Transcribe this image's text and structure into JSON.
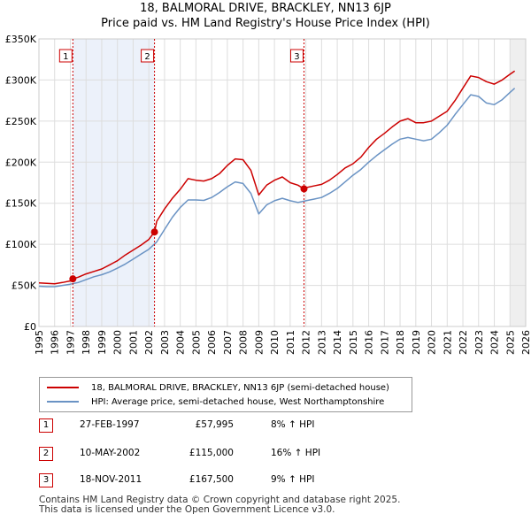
{
  "title_line1": "18, BALMORAL DRIVE, BRACKLEY, NN13 6JP",
  "title_line2": "Price paid vs. HM Land Registry's House Price Index (HPI)",
  "legend": {
    "property_label": "18, BALMORAL DRIVE, BRACKLEY, NN13 6JP (semi-detached house)",
    "hpi_label": "HPI: Average price, semi-detached house, West Northamptonshire"
  },
  "colors": {
    "property": "#cc0000",
    "hpi": "#6a93c4",
    "shade": "#dde6f5",
    "marker_line": "#cc0000"
  },
  "transactions": [
    {
      "num": "1",
      "date": "27-FEB-1997",
      "price": "£57,995",
      "hpi": "8% ↑ HPI"
    },
    {
      "num": "2",
      "date": "10-MAY-2002",
      "price": "£115,000",
      "hpi": "16% ↑ HPI"
    },
    {
      "num": "3",
      "date": "18-NOV-2011",
      "price": "£167,500",
      "hpi": "9% ↑ HPI"
    }
  ],
  "footer_line1": "Contains HM Land Registry data © Crown copyright and database right 2025.",
  "footer_line2": "This data is licensed under the Open Government Licence v3.0.",
  "chart_data": {
    "type": "line",
    "xlim": [
      1995,
      2026
    ],
    "ylim": [
      0,
      350000
    ],
    "ytick_values": [
      0,
      50000,
      100000,
      150000,
      200000,
      250000,
      300000,
      350000
    ],
    "ytick_labels": [
      "£0",
      "£50K",
      "£100K",
      "£150K",
      "£200K",
      "£250K",
      "£300K",
      "£350K"
    ],
    "xtick_values": [
      1995,
      1996,
      1997,
      1998,
      1999,
      2000,
      2001,
      2002,
      2003,
      2004,
      2005,
      2006,
      2007,
      2008,
      2009,
      2010,
      2011,
      2012,
      2013,
      2014,
      2015,
      2016,
      2017,
      2018,
      2019,
      2020,
      2021,
      2022,
      2023,
      2024,
      2025,
      2026
    ],
    "xtick_labels": [
      "1995",
      "1996",
      "1997",
      "1998",
      "1999",
      "2000",
      "2001",
      "2002",
      "2003",
      "2004",
      "2005",
      "2006",
      "2007",
      "2008",
      "2009",
      "2010",
      "2011",
      "2012",
      "2013",
      "2014",
      "2015",
      "2016",
      "2017",
      "2018",
      "2019",
      "2020",
      "2021",
      "2022",
      "2023",
      "2024",
      "2025",
      "2026"
    ],
    "shaded_regions": [
      [
        1997.16,
        2002.36
      ],
      [
        2025.0,
        2026.0
      ]
    ],
    "sales": [
      {
        "label": "1",
        "x": 1997.16,
        "y": 57995
      },
      {
        "label": "2",
        "x": 2002.36,
        "y": 115000
      },
      {
        "label": "3",
        "x": 2011.88,
        "y": 167500
      }
    ],
    "series": [
      {
        "name": "18, BALMORAL DRIVE, BRACKLEY, NN13 6JP (semi-detached house)",
        "x": [
          1995.0,
          1995.5,
          1996.0,
          1996.5,
          1997.0,
          1997.16,
          1997.5,
          1998.0,
          1998.5,
          1999.0,
          1999.5,
          2000.0,
          2000.5,
          2001.0,
          2001.5,
          2002.0,
          2002.36,
          2002.5,
          2003.0,
          2003.5,
          2004.0,
          2004.5,
          2005.0,
          2005.5,
          2006.0,
          2006.5,
          2007.0,
          2007.5,
          2008.0,
          2008.5,
          2009.0,
          2009.5,
          2010.0,
          2010.5,
          2011.0,
          2011.5,
          2011.88,
          2012.0,
          2012.5,
          2013.0,
          2013.5,
          2014.0,
          2014.5,
          2015.0,
          2015.5,
          2016.0,
          2016.5,
          2017.0,
          2017.5,
          2018.0,
          2018.5,
          2019.0,
          2019.5,
          2020.0,
          2020.5,
          2021.0,
          2021.5,
          2022.0,
          2022.5,
          2023.0,
          2023.5,
          2024.0,
          2024.5,
          2025.0,
          2025.3
        ],
        "y": [
          53000,
          52500,
          52000,
          53500,
          55500,
          57995,
          60000,
          64000,
          67000,
          70000,
          75000,
          80000,
          87000,
          93000,
          99000,
          106000,
          115000,
          128000,
          143000,
          156000,
          167000,
          180000,
          178000,
          177000,
          180000,
          186000,
          196000,
          204000,
          203000,
          190000,
          160000,
          172000,
          178000,
          182000,
          175000,
          172000,
          167500,
          169000,
          171000,
          173000,
          178000,
          185000,
          193000,
          198000,
          206000,
          218000,
          228000,
          235000,
          243000,
          250000,
          253000,
          248000,
          248000,
          250000,
          256000,
          262000,
          275000,
          290000,
          305000,
          303000,
          298000,
          295000,
          300000,
          307000,
          311000
        ]
      },
      {
        "name": "HPI: Average price, semi-detached house, West Northamptonshire",
        "x": [
          1995.0,
          1995.5,
          1996.0,
          1996.5,
          1997.0,
          1997.5,
          1998.0,
          1998.5,
          1999.0,
          1999.5,
          2000.0,
          2000.5,
          2001.0,
          2001.5,
          2002.0,
          2002.5,
          2003.0,
          2003.5,
          2004.0,
          2004.5,
          2005.0,
          2005.5,
          2006.0,
          2006.5,
          2007.0,
          2007.5,
          2008.0,
          2008.5,
          2009.0,
          2009.5,
          2010.0,
          2010.5,
          2011.0,
          2011.5,
          2012.0,
          2012.5,
          2013.0,
          2013.5,
          2014.0,
          2014.5,
          2015.0,
          2015.5,
          2016.0,
          2016.5,
          2017.0,
          2017.5,
          2018.0,
          2018.5,
          2019.0,
          2019.5,
          2020.0,
          2020.5,
          2021.0,
          2021.5,
          2022.0,
          2022.5,
          2023.0,
          2023.5,
          2024.0,
          2024.5,
          2025.0,
          2025.3
        ],
        "y": [
          49000,
          48500,
          48500,
          50000,
          51500,
          53500,
          57000,
          60500,
          63000,
          66500,
          71000,
          76000,
          82000,
          88000,
          94000,
          103000,
          118000,
          133000,
          145000,
          154000,
          154000,
          153500,
          157000,
          163000,
          170000,
          176000,
          174000,
          162000,
          137000,
          148000,
          153000,
          156000,
          153000,
          151000,
          153000,
          155000,
          157000,
          162000,
          168000,
          176000,
          184000,
          191000,
          200000,
          208000,
          215000,
          222000,
          228000,
          230000,
          228000,
          226000,
          228000,
          236000,
          245000,
          258000,
          270000,
          282000,
          280000,
          272000,
          270000,
          276000,
          285000,
          290000
        ]
      }
    ]
  }
}
